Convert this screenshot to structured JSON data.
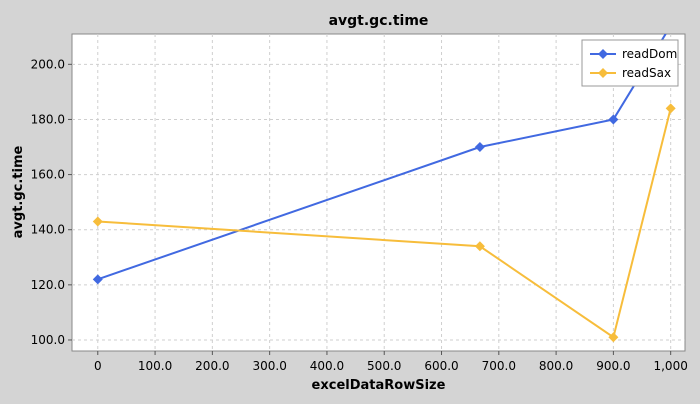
{
  "chart_data": {
    "type": "line",
    "title": "avgt.gc.time",
    "xlabel": "excelDataRowSize",
    "ylabel": "avgt.gc.time",
    "xlim": [
      -45,
      1025
    ],
    "ylim": [
      96,
      211
    ],
    "x_ticks": [
      0,
      100,
      200,
      300,
      400,
      500,
      600,
      700,
      800,
      900,
      1000
    ],
    "x_tick_labels": [
      "0",
      "100.0",
      "200.0",
      "300.0",
      "400.0",
      "500.0",
      "600.0",
      "700.0",
      "800.0",
      "900.0",
      "1,000"
    ],
    "y_ticks": [
      100,
      120,
      140,
      160,
      180,
      200
    ],
    "y_tick_labels": [
      "100.0",
      "120.0",
      "140.0",
      "160.0",
      "180.0",
      "200.0"
    ],
    "grid": true,
    "legend_position": "top-right",
    "series": [
      {
        "name": "readDom",
        "color": "#4169e1",
        "marker": "diamond",
        "points": [
          [
            0,
            122
          ],
          [
            667,
            170
          ],
          [
            900,
            180
          ],
          [
            1000,
            214
          ]
        ]
      },
      {
        "name": "readSax",
        "color": "#f7bd3b",
        "marker": "diamond",
        "points": [
          [
            0,
            143
          ],
          [
            667,
            134
          ],
          [
            900,
            101
          ],
          [
            1000,
            184
          ]
        ]
      }
    ]
  }
}
